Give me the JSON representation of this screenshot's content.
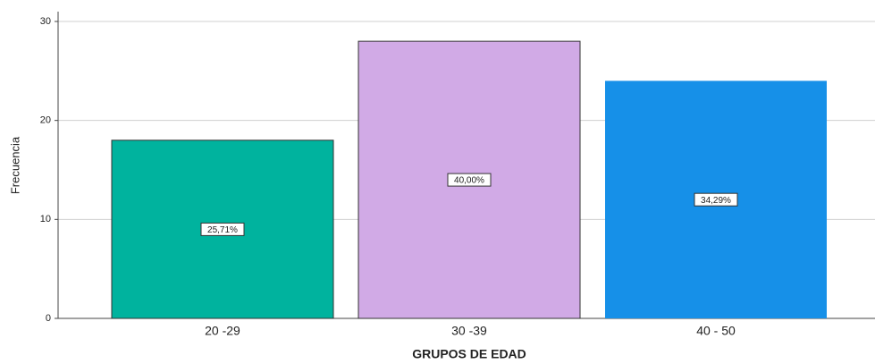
{
  "chart_data": {
    "type": "bar",
    "categories": [
      "20 -29",
      "30 -39",
      "40 - 50"
    ],
    "values": [
      18,
      28,
      24
    ],
    "data_labels": [
      "25,71%",
      "40,00%",
      "34,29%"
    ],
    "colors": [
      "#00b39e",
      "#d1aae6",
      "#1690e8"
    ],
    "ylabel": "Frecuencia",
    "xlabel": "GRUPOS DE EDAD",
    "ylim": [
      0,
      30
    ],
    "yticks": [
      0,
      10,
      20,
      30
    ],
    "grid": true
  }
}
